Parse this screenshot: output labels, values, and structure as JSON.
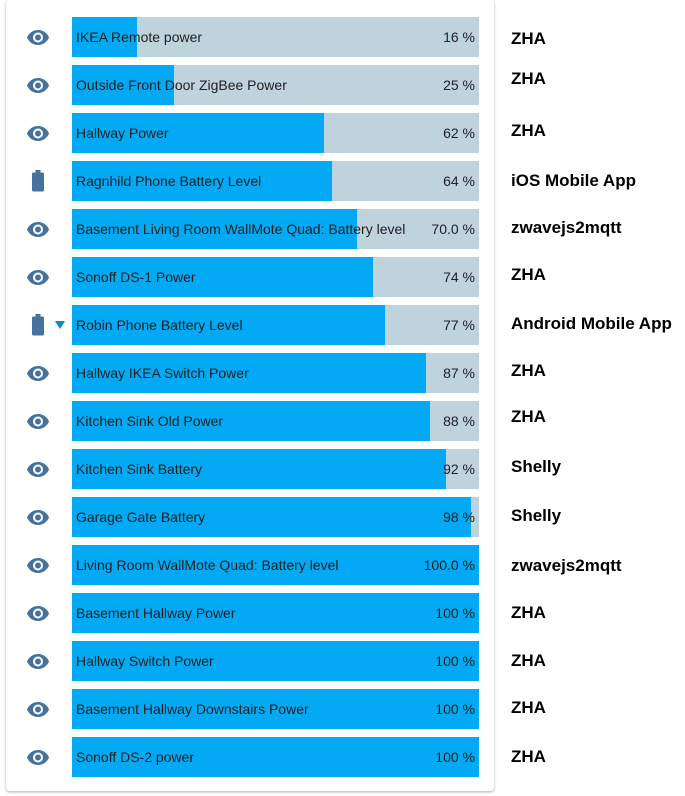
{
  "colors": {
    "fill": "#03a9f4",
    "track": "#bfd3dc",
    "icon": "#44739e"
  },
  "rows": [
    {
      "label": "IKEA Remote power",
      "value_text": "16 %",
      "level": 16,
      "icon": "eye-icon",
      "integration": "ZHA"
    },
    {
      "label": "Outside Front Door ZigBee Power",
      "value_text": "25 %",
      "level": 25,
      "icon": "eye-icon",
      "integration": "ZHA"
    },
    {
      "label": "Hallway Power",
      "value_text": "62 %",
      "level": 62,
      "icon": "eye-icon",
      "integration": "ZHA"
    },
    {
      "label": "Ragnhild Phone Battery Level",
      "value_text": "64 %",
      "level": 64,
      "icon": "battery-icon",
      "integration": "iOS Mobile App"
    },
    {
      "label": "Basement Living Room WallMote Quad: Battery level",
      "value_text": "70.0 %",
      "level": 70,
      "icon": "eye-icon",
      "integration": "zwavejs2mqtt"
    },
    {
      "label": "Sonoff DS-1 Power",
      "value_text": "74 %",
      "level": 74,
      "icon": "eye-icon",
      "integration": "ZHA"
    },
    {
      "label": "Robin Phone Battery Level",
      "value_text": "77 %",
      "level": 77,
      "icon": "battery-icon",
      "integration": "Android Mobile App",
      "has_chevron": true
    },
    {
      "label": "Hallway IKEA Switch Power",
      "value_text": "87 %",
      "level": 87,
      "icon": "eye-icon",
      "integration": "ZHA"
    },
    {
      "label": "Kitchen Sink Old Power",
      "value_text": "88 %",
      "level": 88,
      "icon": "eye-icon",
      "integration": "ZHA"
    },
    {
      "label": "Kitchen Sink Battery",
      "value_text": "92 %",
      "level": 92,
      "icon": "eye-icon",
      "integration": "Shelly"
    },
    {
      "label": "Garage Gate Battery",
      "value_text": "98 %",
      "level": 98,
      "icon": "eye-icon",
      "integration": "Shelly"
    },
    {
      "label": "Living Room WallMote Quad: Battery level",
      "value_text": "100.0 %",
      "level": 100,
      "icon": "eye-icon",
      "integration": "zwavejs2mqtt"
    },
    {
      "label": "Basement Hallway Power",
      "value_text": "100 %",
      "level": 100,
      "icon": "eye-icon",
      "integration": "ZHA"
    },
    {
      "label": "Hallway Switch Power",
      "value_text": "100 %",
      "level": 100,
      "icon": "eye-icon",
      "integration": "ZHA"
    },
    {
      "label": "Basement Hallway Downstairs Power",
      "value_text": "100 %",
      "level": 100,
      "icon": "eye-icon",
      "integration": "ZHA"
    },
    {
      "label": "Sonoff DS-2 power",
      "value_text": "100 %",
      "level": 100,
      "icon": "eye-icon",
      "integration": "ZHA"
    }
  ]
}
